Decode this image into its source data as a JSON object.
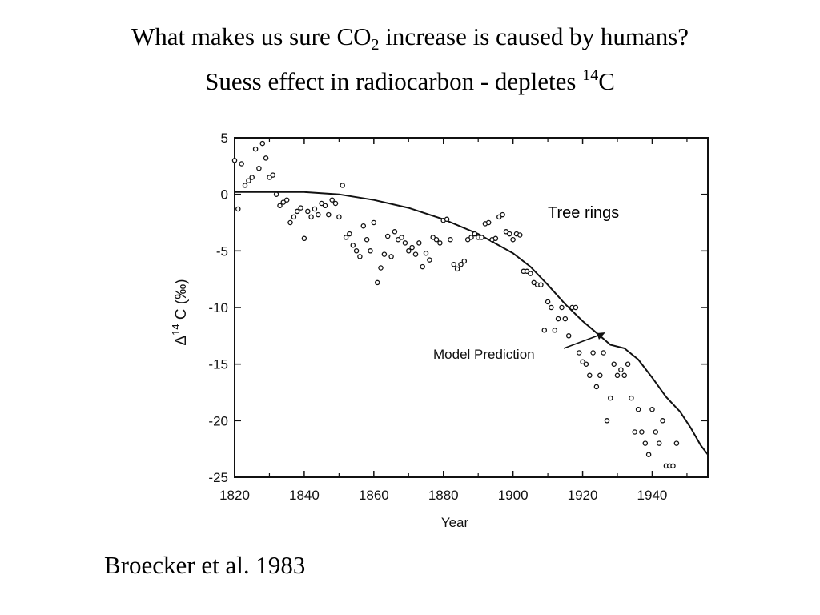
{
  "slide": {
    "title_line1_a": "What makes us sure CO",
    "title_line1_sub": "2",
    "title_line1_b": " increase is caused by humans?",
    "title_line2_a": "Suess effect in radiocarbon - depletes ",
    "title_line2_sup": "14",
    "title_line2_b": "C",
    "source": "Broecker et al. 1983",
    "callout_tree_rings": "Tree rings"
  },
  "chart_data": {
    "type": "scatter",
    "xlabel": "Year",
    "ylabel_parts": [
      "Δ",
      "14",
      " C (‰)"
    ],
    "xlim": [
      1820,
      1956
    ],
    "ylim": [
      -25,
      5
    ],
    "xticks": [
      1820,
      1840,
      1860,
      1880,
      1900,
      1920,
      1940
    ],
    "yticks": [
      5,
      0,
      -5,
      -10,
      -15,
      -20,
      -25
    ],
    "annotation": "Model Prediction",
    "series": [
      {
        "kind": "points",
        "points": [
          [
            1820,
            3
          ],
          [
            1821,
            -1.3
          ],
          [
            1822,
            2.7
          ],
          [
            1823,
            0.8
          ],
          [
            1824,
            1.2
          ],
          [
            1825,
            1.5
          ],
          [
            1826,
            4
          ],
          [
            1827,
            2.3
          ],
          [
            1828,
            4.5
          ],
          [
            1829,
            3.2
          ],
          [
            1830,
            1.5
          ],
          [
            1831,
            1.7
          ],
          [
            1832,
            0
          ],
          [
            1833,
            -1
          ],
          [
            1834,
            -0.7
          ],
          [
            1835,
            -0.5
          ],
          [
            1836,
            -2.5
          ],
          [
            1837,
            -2
          ],
          [
            1838,
            -1.5
          ],
          [
            1839,
            -1.2
          ],
          [
            1840,
            -3.9
          ],
          [
            1841,
            -1.5
          ],
          [
            1842,
            -2
          ],
          [
            1843,
            -1.3
          ],
          [
            1844,
            -1.8
          ],
          [
            1845,
            -0.8
          ],
          [
            1846,
            -1
          ],
          [
            1847,
            -1.8
          ],
          [
            1848,
            -0.5
          ],
          [
            1849,
            -0.8
          ],
          [
            1850,
            -2
          ],
          [
            1851,
            0.8
          ],
          [
            1852,
            -3.8
          ],
          [
            1853,
            -3.5
          ],
          [
            1854,
            -4.5
          ],
          [
            1855,
            -5
          ],
          [
            1856,
            -5.5
          ],
          [
            1857,
            -2.8
          ],
          [
            1858,
            -4
          ],
          [
            1859,
            -5
          ],
          [
            1860,
            -2.5
          ],
          [
            1861,
            -7.8
          ],
          [
            1862,
            -6.5
          ],
          [
            1863,
            -5.3
          ],
          [
            1864,
            -3.7
          ],
          [
            1865,
            -5.5
          ],
          [
            1866,
            -3.3
          ],
          [
            1867,
            -4
          ],
          [
            1868,
            -3.8
          ],
          [
            1869,
            -4.3
          ],
          [
            1870,
            -5
          ],
          [
            1871,
            -4.7
          ],
          [
            1872,
            -5.3
          ],
          [
            1873,
            -4.3
          ],
          [
            1874,
            -6.4
          ],
          [
            1875,
            -5.2
          ],
          [
            1876,
            -5.8
          ],
          [
            1877,
            -3.8
          ],
          [
            1878,
            -4
          ],
          [
            1879,
            -4.3
          ],
          [
            1880,
            -2.3
          ],
          [
            1881,
            -2.2
          ],
          [
            1882,
            -4
          ],
          [
            1883,
            -6.2
          ],
          [
            1884,
            -6.6
          ],
          [
            1885,
            -6.2
          ],
          [
            1886,
            -5.9
          ],
          [
            1887,
            -4
          ],
          [
            1888,
            -3.8
          ],
          [
            1889,
            -3.5
          ],
          [
            1890,
            -3.8
          ],
          [
            1891,
            -3.8
          ],
          [
            1892,
            -2.6
          ],
          [
            1893,
            -2.5
          ],
          [
            1894,
            -4
          ],
          [
            1895,
            -3.9
          ],
          [
            1896,
            -2
          ],
          [
            1897,
            -1.8
          ],
          [
            1898,
            -3.3
          ],
          [
            1899,
            -3.5
          ],
          [
            1900,
            -4
          ],
          [
            1901,
            -3.5
          ],
          [
            1902,
            -3.6
          ],
          [
            1903,
            -6.8
          ],
          [
            1904,
            -6.8
          ],
          [
            1905,
            -7
          ],
          [
            1906,
            -7.8
          ],
          [
            1907,
            -8
          ],
          [
            1908,
            -8
          ],
          [
            1909,
            -12
          ],
          [
            1910,
            -9.5
          ],
          [
            1911,
            -10
          ],
          [
            1912,
            -12
          ],
          [
            1913,
            -11
          ],
          [
            1914,
            -10
          ],
          [
            1915,
            -11
          ],
          [
            1916,
            -12.5
          ],
          [
            1917,
            -10
          ],
          [
            1918,
            -10
          ],
          [
            1919,
            -14
          ],
          [
            1920,
            -14.8
          ],
          [
            1921,
            -15
          ],
          [
            1922,
            -16
          ],
          [
            1923,
            -14
          ],
          [
            1924,
            -17
          ],
          [
            1925,
            -16
          ],
          [
            1926,
            -14
          ],
          [
            1927,
            -20
          ],
          [
            1928,
            -18
          ],
          [
            1929,
            -15
          ],
          [
            1930,
            -16
          ],
          [
            1931,
            -15.5
          ],
          [
            1932,
            -16
          ],
          [
            1933,
            -15
          ],
          [
            1934,
            -18
          ],
          [
            1935,
            -21
          ],
          [
            1936,
            -19
          ],
          [
            1937,
            -21
          ],
          [
            1938,
            -22
          ],
          [
            1939,
            -23
          ],
          [
            1940,
            -19
          ],
          [
            1941,
            -21
          ],
          [
            1942,
            -22
          ],
          [
            1943,
            -20
          ],
          [
            1944,
            -24
          ],
          [
            1945,
            -24
          ],
          [
            1946,
            -24
          ],
          [
            1947,
            -22
          ]
        ]
      },
      {
        "kind": "line",
        "name": "Model Prediction",
        "points": [
          [
            1820,
            0.2
          ],
          [
            1830,
            0.2
          ],
          [
            1840,
            0.2
          ],
          [
            1850,
            0
          ],
          [
            1860,
            -0.5
          ],
          [
            1870,
            -1.2
          ],
          [
            1880,
            -2.2
          ],
          [
            1890,
            -3.5
          ],
          [
            1900,
            -5.2
          ],
          [
            1905,
            -6.4
          ],
          [
            1910,
            -8
          ],
          [
            1915,
            -9.7
          ],
          [
            1920,
            -11.2
          ],
          [
            1925,
            -12.5
          ],
          [
            1928,
            -13.3
          ],
          [
            1932,
            -13.6
          ],
          [
            1936,
            -14.6
          ],
          [
            1940,
            -16.2
          ],
          [
            1944,
            -17.9
          ],
          [
            1948,
            -19.2
          ],
          [
            1951,
            -20.6
          ],
          [
            1954,
            -22.2
          ],
          [
            1956,
            -23
          ]
        ]
      }
    ]
  }
}
